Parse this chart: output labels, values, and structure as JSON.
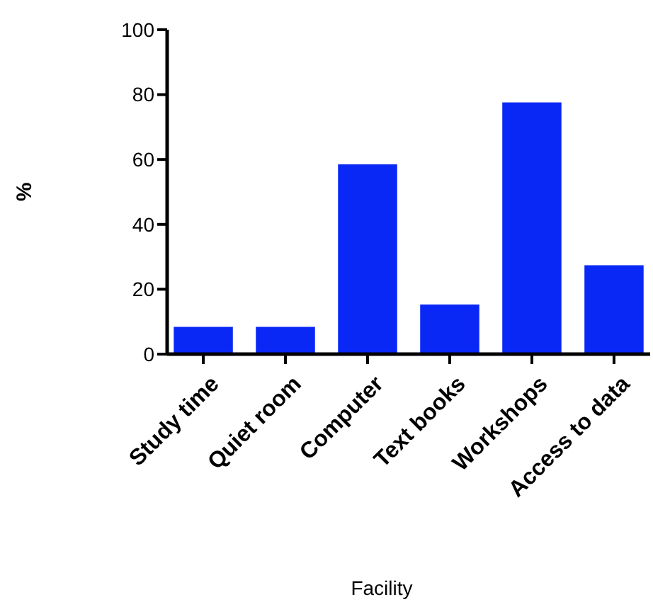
{
  "chart_data": {
    "type": "bar",
    "xlabel": "Facility",
    "ylabel": "%",
    "categories": [
      "Study time",
      "Quiet room",
      "Computer",
      "Text books",
      "Workshops",
      "Access to data"
    ],
    "values": [
      8.4,
      8.4,
      58.5,
      15.3,
      77.6,
      27.4
    ],
    "color": "#0a28f5",
    "ylim": [
      0,
      100
    ],
    "yticks": [
      0,
      20,
      40,
      60,
      80,
      100
    ],
    "grid": false
  }
}
